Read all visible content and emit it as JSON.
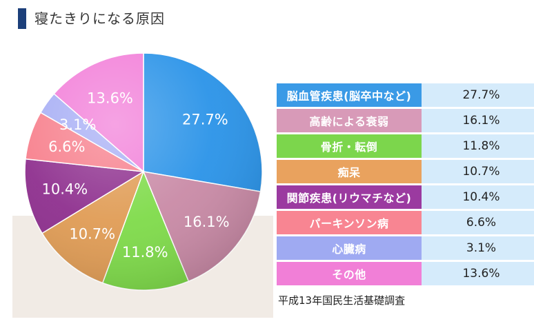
{
  "page": {
    "title": "寝たきりになる原因"
  },
  "chart_data": {
    "type": "pie",
    "title": "寝たきりになる原因",
    "slices": [
      {
        "label": "脳血管疾患(脳卒中など)",
        "value": 27.7,
        "display": "27.7%",
        "color": "#2a93e8",
        "row_color": "#3a9ae6"
      },
      {
        "label": "高齢による衰弱",
        "value": 16.1,
        "display": "16.1%",
        "color": "#c98aa6",
        "row_color": "#d89ab8"
      },
      {
        "label": "骨折・転倒",
        "value": 11.8,
        "display": "11.8%",
        "color": "#7fdb4a",
        "row_color": "#7cd64c"
      },
      {
        "label": "痴呆",
        "value": 10.7,
        "display": "10.7%",
        "color": "#e09c55",
        "row_color": "#e9a25e"
      },
      {
        "label": "関節疾患(リウマチなど)",
        "value": 10.4,
        "display": "10.4%",
        "color": "#8e2f8e",
        "row_color": "#9b3aa0"
      },
      {
        "label": "パーキンソン病",
        "value": 6.6,
        "display": "6.6%",
        "color": "#f77f8c",
        "row_color": "#f88592"
      },
      {
        "label": "心臓病",
        "value": 3.1,
        "display": "3.1%",
        "color": "#a7aef5",
        "row_color": "#9faaf2"
      },
      {
        "label": "その他",
        "value": 13.6,
        "display": "13.6%",
        "color": "#f27fd9",
        "row_color": "#f17fd7"
      }
    ],
    "source": "平成13年国民生活基礎調査"
  }
}
